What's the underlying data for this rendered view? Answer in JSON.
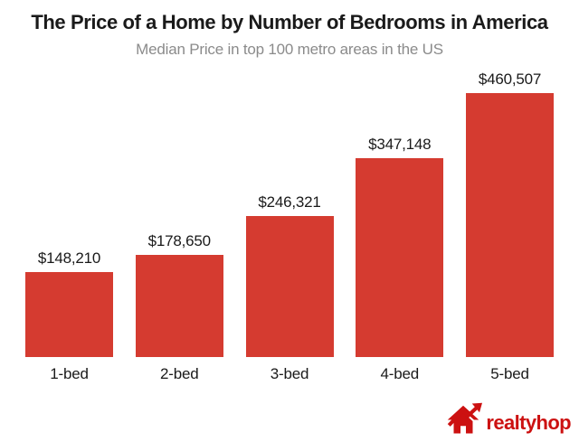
{
  "chart_data": {
    "type": "bar",
    "title": "The Price of a Home by Number of Bedrooms in America",
    "subtitle": "Median Price in top 100 metro areas in the US",
    "categories": [
      "1-bed",
      "2-bed",
      "3-bed",
      "4-bed",
      "5-bed"
    ],
    "values": [
      148210,
      178650,
      246321,
      347148,
      460507
    ],
    "value_labels": [
      "$148,210",
      "$178,650",
      "$246,321",
      "$347,148",
      "$460,507"
    ],
    "xlabel": "",
    "ylabel": "",
    "ylim": [
      0,
      460507
    ],
    "grid": false,
    "legend_position": "none",
    "bar_color": "#d53b30",
    "value_label_color": "#1a1a1a",
    "category_label_color": "#1a1a1a"
  },
  "branding": {
    "logo_text": "realtyhop",
    "logo_color": "#cc1111",
    "logo_icon": "house-with-rising-arrow"
  },
  "colors": {
    "background": "#ffffff",
    "title": "#1a1a1a",
    "subtitle": "#8b8b8b"
  }
}
